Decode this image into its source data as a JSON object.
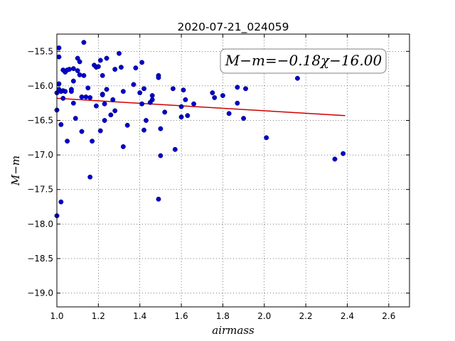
{
  "chart_data": {
    "type": "scatter",
    "title": "2020-07-21_024059",
    "xlabel": "airmass",
    "ylabel": "M−m",
    "annotation": "M−m=−0.18χ−16.00",
    "xlim": [
      1.0,
      2.7
    ],
    "ylim": [
      -19.2,
      -15.25
    ],
    "y_inverted": true,
    "grid": true,
    "xticks": [
      1.0,
      1.2,
      1.4,
      1.6,
      1.8,
      2.0,
      2.2,
      2.4,
      2.6
    ],
    "xtick_labels": [
      "1.0",
      "1.2",
      "1.4",
      "1.6",
      "1.8",
      "2.0",
      "2.2",
      "2.4",
      "2.6"
    ],
    "yticks": [
      -15.5,
      -16.0,
      -16.5,
      -17.0,
      -17.5,
      -18.0,
      -18.5,
      -19.0
    ],
    "ytick_labels": [
      "−15.5",
      "−16.0",
      "−16.5",
      "−17.0",
      "−17.5",
      "−18.0",
      "−18.5",
      "−19.0"
    ],
    "point_color": "#0000cc",
    "fit_color": "#cc0000",
    "fit": {
      "slope": -0.18,
      "intercept": -16.0,
      "x_range": [
        1.0,
        2.39
      ]
    },
    "points": [
      [
        1.0,
        -17.88
      ],
      [
        1.0,
        -16.35
      ],
      [
        1.0,
        -16.1
      ],
      [
        1.01,
        -15.45
      ],
      [
        1.01,
        -15.58
      ],
      [
        1.01,
        -15.97
      ],
      [
        1.01,
        -16.05
      ],
      [
        1.02,
        -16.08
      ],
      [
        1.02,
        -16.56
      ],
      [
        1.02,
        -17.68
      ],
      [
        1.03,
        -15.77
      ],
      [
        1.03,
        -16.07
      ],
      [
        1.03,
        -16.18
      ],
      [
        1.04,
        -15.8
      ],
      [
        1.04,
        -16.08
      ],
      [
        1.05,
        -15.77
      ],
      [
        1.05,
        -16.8
      ],
      [
        1.06,
        -15.76
      ],
      [
        1.07,
        -16.05
      ],
      [
        1.07,
        -16.08
      ],
      [
        1.08,
        -15.75
      ],
      [
        1.08,
        -15.93
      ],
      [
        1.08,
        -16.25
      ],
      [
        1.09,
        -16.47
      ],
      [
        1.1,
        -15.78
      ],
      [
        1.1,
        -15.6
      ],
      [
        1.11,
        -15.65
      ],
      [
        1.11,
        -15.84
      ],
      [
        1.12,
        -16.16
      ],
      [
        1.12,
        -16.66
      ],
      [
        1.13,
        -15.85
      ],
      [
        1.13,
        -15.37
      ],
      [
        1.14,
        -16.16
      ],
      [
        1.15,
        -16.03
      ],
      [
        1.16,
        -17.32
      ],
      [
        1.16,
        -16.17
      ],
      [
        1.17,
        -16.8
      ],
      [
        1.18,
        -15.7
      ],
      [
        1.19,
        -15.73
      ],
      [
        1.19,
        -16.29
      ],
      [
        1.2,
        -15.72
      ],
      [
        1.21,
        -15.63
      ],
      [
        1.21,
        -16.65
      ],
      [
        1.22,
        -15.85
      ],
      [
        1.22,
        -16.12
      ],
      [
        1.22,
        -16.13
      ],
      [
        1.23,
        -16.5
      ],
      [
        1.23,
        -16.26
      ],
      [
        1.24,
        -16.05
      ],
      [
        1.24,
        -15.6
      ],
      [
        1.26,
        -16.42
      ],
      [
        1.27,
        -16.2
      ],
      [
        1.28,
        -15.76
      ],
      [
        1.28,
        -16.36
      ],
      [
        1.3,
        -15.53
      ],
      [
        1.31,
        -15.73
      ],
      [
        1.32,
        -16.08
      ],
      [
        1.32,
        -16.88
      ],
      [
        1.34,
        -16.57
      ],
      [
        1.37,
        -15.98
      ],
      [
        1.38,
        -15.74
      ],
      [
        1.4,
        -16.1
      ],
      [
        1.41,
        -16.26
      ],
      [
        1.41,
        -15.66
      ],
      [
        1.42,
        -16.04
      ],
      [
        1.42,
        -16.64
      ],
      [
        1.43,
        -16.5
      ],
      [
        1.45,
        -16.24
      ],
      [
        1.46,
        -16.2
      ],
      [
        1.46,
        -16.14
      ],
      [
        1.49,
        -17.64
      ],
      [
        1.49,
        -15.85
      ],
      [
        1.49,
        -15.88
      ],
      [
        1.5,
        -16.62
      ],
      [
        1.5,
        -17.01
      ],
      [
        1.52,
        -16.38
      ],
      [
        1.56,
        -16.04
      ],
      [
        1.57,
        -16.92
      ],
      [
        1.6,
        -16.45
      ],
      [
        1.6,
        -16.3
      ],
      [
        1.61,
        -16.06
      ],
      [
        1.62,
        -16.2
      ],
      [
        1.63,
        -16.43
      ],
      [
        1.66,
        -16.26
      ],
      [
        1.75,
        -16.1
      ],
      [
        1.76,
        -16.17
      ],
      [
        1.8,
        -16.14
      ],
      [
        1.83,
        -16.4
      ],
      [
        1.87,
        -16.02
      ],
      [
        1.87,
        -16.25
      ],
      [
        1.9,
        -16.47
      ],
      [
        1.91,
        -16.04
      ],
      [
        2.01,
        -16.75
      ],
      [
        2.16,
        -15.89
      ],
      [
        2.34,
        -17.06
      ],
      [
        2.38,
        -16.98
      ]
    ]
  }
}
